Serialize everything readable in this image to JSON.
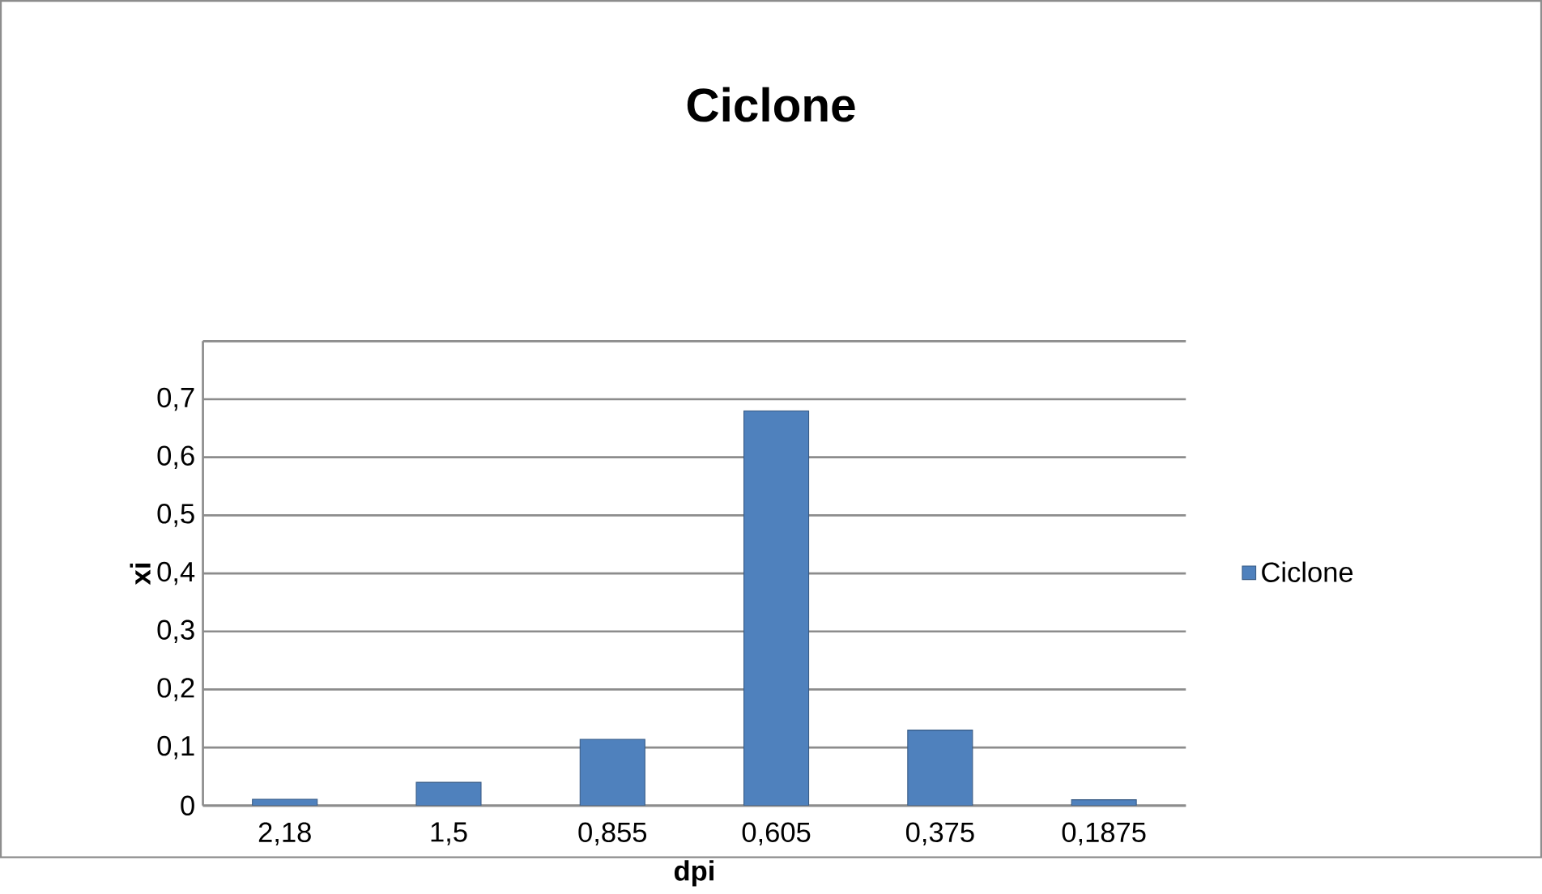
{
  "chart_data": {
    "type": "bar",
    "title": "Ciclone",
    "xlabel": "dpi",
    "ylabel": "xi",
    "categories": [
      "2,18",
      "1,5",
      "0,855",
      "0,605",
      "0,375",
      "0,1875"
    ],
    "series": [
      {
        "name": "Ciclone",
        "color": "#4f81bd",
        "values": [
          0.011,
          0.04,
          0.114,
          0.68,
          0.13,
          0.01
        ]
      }
    ],
    "ylim": [
      0,
      0.8
    ],
    "yticks": [
      {
        "value": 0,
        "label": "0"
      },
      {
        "value": 0.1,
        "label": "0,1"
      },
      {
        "value": 0.2,
        "label": "0,2"
      },
      {
        "value": 0.3,
        "label": "0,3"
      },
      {
        "value": 0.4,
        "label": "0,4"
      },
      {
        "value": 0.5,
        "label": "0,5"
      },
      {
        "value": 0.6,
        "label": "0,6"
      },
      {
        "value": 0.7,
        "label": "0,7"
      },
      {
        "value": 0.8,
        "label": null
      }
    ],
    "grid": "y",
    "legend": "right"
  }
}
